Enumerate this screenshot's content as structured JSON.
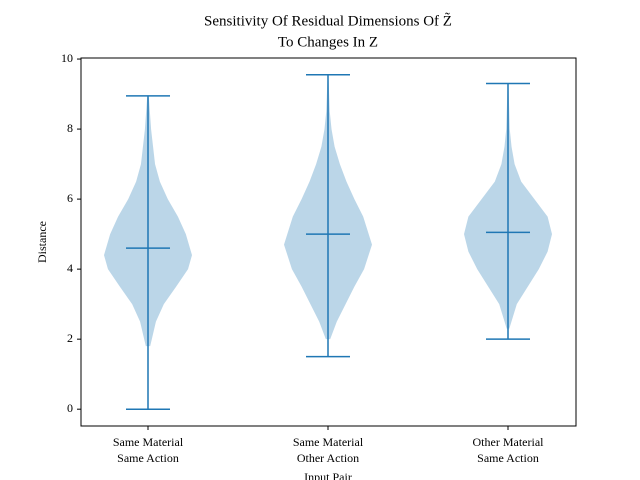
{
  "chart_data": {
    "type": "violin",
    "title": [
      "Sensitivity Of Residual Dimensions Of Z̃",
      "To Changes In Z"
    ],
    "x_label": "Input Pair",
    "y_label": "Distance",
    "categories": [
      [
        "Same Material",
        "Same Action"
      ],
      [
        "Same Material",
        "Other Action"
      ],
      [
        "Other Material",
        "Same Action"
      ]
    ],
    "color": "#1f77b4",
    "ylim": [
      -0.48,
      10.03
    ],
    "yticks": [
      0,
      2,
      4,
      6,
      8,
      10
    ],
    "violins": [
      {
        "min": 0,
        "max": 8.95,
        "mean": 4.6,
        "profile": {
          "y": [
            1.8,
            2.5,
            3,
            3.5,
            4,
            4.4,
            5,
            5.5,
            6,
            6.5,
            7,
            8,
            8.9
          ],
          "width": [
            0.05,
            0.18,
            0.36,
            0.64,
            0.91,
            1,
            0.86,
            0.68,
            0.45,
            0.27,
            0.16,
            0.07,
            0.02
          ]
        }
      },
      {
        "min": 1.5,
        "max": 9.55,
        "mean": 5.0,
        "profile": {
          "y": [
            2,
            2.5,
            3,
            3.5,
            4,
            4.7,
            5.5,
            6,
            6.5,
            7,
            7.5,
            8,
            8.5,
            9.5
          ],
          "width": [
            0.05,
            0.2,
            0.4,
            0.6,
            0.82,
            1,
            0.8,
            0.6,
            0.42,
            0.27,
            0.15,
            0.08,
            0.04,
            0.01
          ]
        }
      },
      {
        "min": 2.0,
        "max": 9.3,
        "mean": 5.05,
        "profile": {
          "y": [
            2.3,
            3,
            3.5,
            4,
            4.5,
            5,
            5.5,
            6,
            6.5,
            7,
            7.5,
            8,
            9.3
          ],
          "width": [
            0.03,
            0.2,
            0.45,
            0.7,
            0.9,
            1,
            0.9,
            0.6,
            0.3,
            0.15,
            0.08,
            0.04,
            0.01
          ]
        }
      }
    ]
  }
}
